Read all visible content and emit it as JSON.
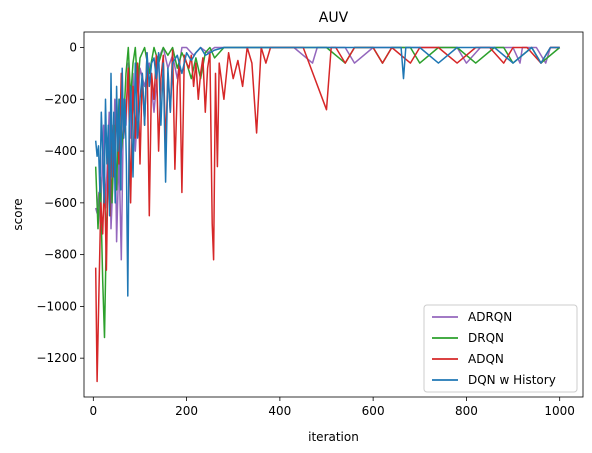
{
  "chart_data": {
    "type": "line",
    "title": "AUV",
    "xlabel": "iteration",
    "ylabel": "score",
    "xlim": [
      -20,
      1050
    ],
    "ylim": [
      -1350,
      60
    ],
    "xticks": [
      0,
      200,
      400,
      600,
      800,
      1000
    ],
    "xtick_labels": [
      "0",
      "200",
      "400",
      "600",
      "800",
      "1000"
    ],
    "yticks": [
      0,
      -200,
      -400,
      -600,
      -800,
      -1000,
      -1200
    ],
    "ytick_labels": [
      "0",
      "−200",
      "−400",
      "−600",
      "−800",
      "−1000",
      "−1200"
    ],
    "grid": false,
    "legend_position": "lower-right",
    "series": [
      {
        "name": "ADRQN",
        "color": "#9467bd",
        "x": [
          5,
          8,
          12,
          15,
          18,
          22,
          26,
          30,
          34,
          38,
          42,
          46,
          50,
          55,
          60,
          65,
          70,
          75,
          80,
          85,
          90,
          95,
          100,
          110,
          120,
          130,
          140,
          150,
          160,
          170,
          180,
          190,
          200,
          215,
          230,
          245,
          260,
          280,
          300,
          320,
          345,
          370,
          400,
          430,
          470,
          480,
          520,
          540,
          560,
          600,
          620,
          640,
          680,
          700,
          740,
          780,
          800,
          830,
          850,
          880,
          900,
          915,
          920,
          950,
          970,
          980,
          1000
        ],
        "y": [
          -620,
          -640,
          -560,
          -680,
          -520,
          -300,
          -620,
          -450,
          -250,
          -700,
          -520,
          -200,
          -750,
          -400,
          -820,
          -200,
          -300,
          -60,
          -350,
          -100,
          -400,
          -250,
          -80,
          -150,
          -60,
          -250,
          -40,
          0,
          -80,
          -30,
          -120,
          0,
          0,
          -30,
          0,
          -20,
          0,
          0,
          0,
          0,
          0,
          0,
          0,
          0,
          -60,
          0,
          0,
          0,
          -60,
          0,
          0,
          0,
          0,
          0,
          0,
          0,
          -60,
          0,
          0,
          0,
          0,
          -60,
          0,
          0,
          -60,
          0,
          0
        ]
      },
      {
        "name": "DRQN",
        "color": "#2ca02c",
        "x": [
          5,
          10,
          15,
          20,
          24,
          28,
          32,
          36,
          40,
          45,
          50,
          55,
          60,
          65,
          70,
          75,
          80,
          85,
          90,
          95,
          100,
          110,
          120,
          130,
          140,
          150,
          160,
          170,
          180,
          190,
          200,
          210,
          220,
          230,
          240,
          250,
          260,
          280,
          300,
          330,
          360,
          400,
          450,
          500,
          540,
          560,
          580,
          600,
          620,
          640,
          660,
          680,
          700,
          740,
          780,
          820,
          860,
          880,
          900,
          940,
          960,
          1000
        ],
        "y": [
          -460,
          -700,
          -500,
          -900,
          -1120,
          -700,
          -500,
          -400,
          -600,
          -300,
          -550,
          -200,
          -400,
          -300,
          -100,
          0,
          -200,
          -60,
          0,
          -150,
          -40,
          0,
          -100,
          0,
          -60,
          0,
          -30,
          0,
          -80,
          -20,
          -60,
          -120,
          -40,
          -120,
          -20,
          0,
          -40,
          0,
          0,
          0,
          0,
          0,
          0,
          0,
          -60,
          0,
          0,
          0,
          -60,
          0,
          0,
          0,
          -60,
          0,
          0,
          -60,
          0,
          0,
          -60,
          0,
          -60,
          0
        ]
      },
      {
        "name": "ADQN",
        "color": "#d62728",
        "x": [
          5,
          8,
          12,
          16,
          20,
          24,
          28,
          32,
          36,
          40,
          45,
          50,
          55,
          60,
          65,
          70,
          75,
          80,
          85,
          90,
          95,
          100,
          105,
          110,
          115,
          120,
          125,
          130,
          135,
          140,
          145,
          150,
          155,
          160,
          165,
          170,
          175,
          180,
          185,
          190,
          195,
          200,
          205,
          210,
          215,
          220,
          225,
          230,
          235,
          240,
          245,
          250,
          255,
          258,
          262,
          266,
          270,
          280,
          290,
          300,
          310,
          320,
          330,
          340,
          350,
          360,
          370,
          380,
          400,
          450,
          500,
          510,
          520,
          540,
          560,
          600,
          620,
          640,
          680,
          700,
          740,
          780,
          820,
          850,
          880,
          900,
          930,
          960,
          980,
          1000
        ],
        "y": [
          -850,
          -1290,
          -950,
          -600,
          -720,
          -500,
          -860,
          -400,
          -650,
          -300,
          -500,
          -200,
          -450,
          -100,
          -350,
          -250,
          -80,
          -600,
          -150,
          -350,
          -60,
          -450,
          -100,
          -300,
          -20,
          -650,
          -100,
          -200,
          -30,
          -400,
          -120,
          -30,
          -380,
          -100,
          -250,
          -10,
          -470,
          -150,
          -50,
          -560,
          -30,
          -60,
          -80,
          -30,
          -150,
          -60,
          -200,
          -100,
          -40,
          -250,
          -80,
          -20,
          -680,
          -820,
          -100,
          -460,
          -60,
          -200,
          -20,
          -120,
          -50,
          -150,
          0,
          -60,
          -330,
          0,
          -60,
          0,
          0,
          0,
          -240,
          0,
          0,
          -60,
          0,
          0,
          -60,
          0,
          -60,
          0,
          0,
          -60,
          0,
          0,
          -60,
          0,
          0,
          -60,
          0,
          0
        ]
      },
      {
        "name": "DQN w History",
        "color": "#1f77b4",
        "x": [
          5,
          8,
          11,
          14,
          17,
          20,
          23,
          26,
          29,
          32,
          35,
          38,
          41,
          44,
          47,
          50,
          53,
          56,
          59,
          62,
          65,
          68,
          71,
          74,
          77,
          80,
          85,
          90,
          95,
          100,
          105,
          110,
          115,
          120,
          125,
          130,
          135,
          140,
          145,
          150,
          155,
          160,
          165,
          170,
          180,
          190,
          200,
          210,
          220,
          230,
          240,
          260,
          280,
          300,
          320,
          360,
          400,
          440,
          480,
          520,
          560,
          600,
          640,
          660,
          665,
          670,
          700,
          740,
          780,
          820,
          860,
          900,
          940,
          960,
          980,
          1000
        ],
        "y": [
          -360,
          -420,
          -380,
          -560,
          -250,
          -400,
          -600,
          -200,
          -450,
          -300,
          -650,
          -100,
          -500,
          -250,
          -600,
          -150,
          -400,
          -200,
          -550,
          -80,
          -350,
          -200,
          -450,
          -960,
          -300,
          -150,
          -500,
          -60,
          -350,
          -200,
          -100,
          -300,
          -20,
          -150,
          -60,
          -40,
          -120,
          -20,
          -300,
          -60,
          -520,
          -80,
          -250,
          -60,
          -30,
          -100,
          -20,
          -50,
          -20,
          0,
          -30,
          -10,
          0,
          0,
          0,
          0,
          0,
          0,
          0,
          0,
          0,
          0,
          0,
          0,
          -120,
          0,
          0,
          -60,
          0,
          0,
          0,
          -60,
          0,
          -60,
          0,
          0
        ]
      }
    ]
  }
}
